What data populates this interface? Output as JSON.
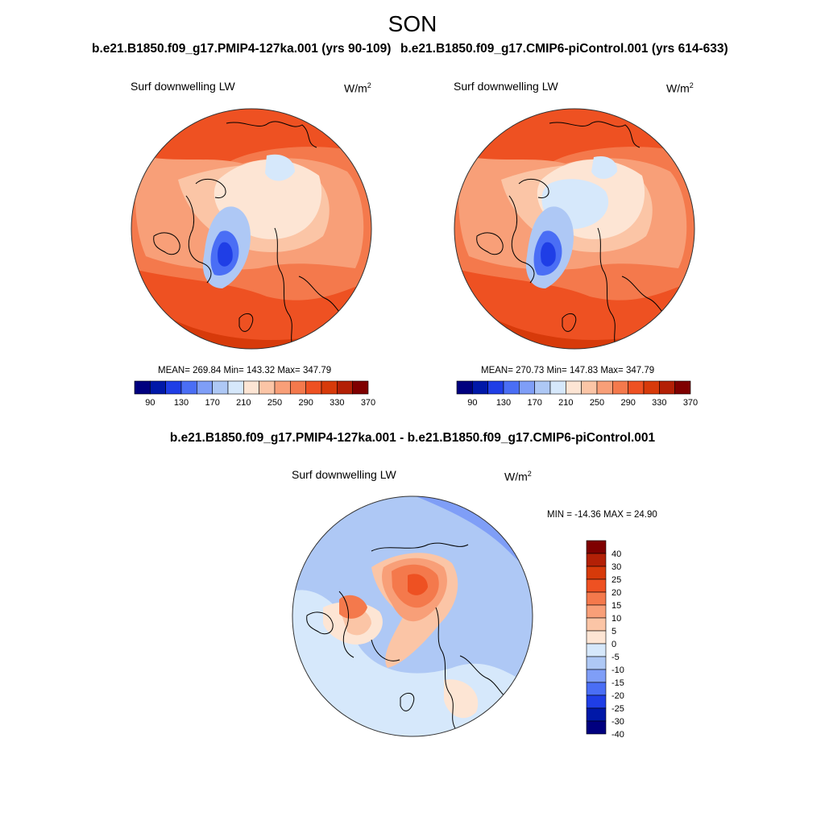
{
  "season": "SON",
  "panel_left": {
    "run_title": "b.e21.B1850.f09_g17.PMIP4-127ka.001 (yrs 90-109)",
    "variable": "Surf downwelling LW",
    "units": "W/m",
    "units_sup": "2",
    "stats": "MEAN= 269.84  Min= 143.32  Max= 347.79"
  },
  "panel_right": {
    "run_title": "b.e21.B1850.f09_g17.CMIP6-piControl.001 (yrs 614-633)",
    "variable": "Surf downwelling LW",
    "units": "W/m",
    "units_sup": "2",
    "stats": "MEAN= 270.73  Min= 147.83  Max= 347.79"
  },
  "abs_colorbar": {
    "colors": [
      "#00007f",
      "#0018a8",
      "#1f3ee6",
      "#4a6ef5",
      "#7f9ef7",
      "#aec8f5",
      "#d6e8fb",
      "#fde5d4",
      "#fbc5a6",
      "#f89f78",
      "#f4794c",
      "#ee5122",
      "#d73a0a",
      "#b32006",
      "#7f0000"
    ],
    "labels": [
      "90",
      "130",
      "170",
      "210",
      "250",
      "290",
      "330",
      "370"
    ]
  },
  "panel_diff": {
    "title": "b.e21.B1850.f09_g17.PMIP4-127ka.001 - b.e21.B1850.f09_g17.CMIP6-piControl.001",
    "variable": "Surf downwelling LW",
    "units": "W/m",
    "units_sup": "2",
    "stats": "MIN = -14.36 MAX =  24.90"
  },
  "diff_colorbar": {
    "colors": [
      "#7f0000",
      "#b32006",
      "#d73a0a",
      "#ee5122",
      "#f4794c",
      "#f89f78",
      "#fbc5a6",
      "#fde5d4",
      "#d6e8fb",
      "#aec8f5",
      "#7f9ef7",
      "#4a6ef5",
      "#1f3ee6",
      "#0018a8",
      "#00007f"
    ],
    "labels": [
      "40",
      "30",
      "25",
      "20",
      "15",
      "10",
      "5",
      "0",
      "-5",
      "-10",
      "-15",
      "-20",
      "-25",
      "-30",
      "-40"
    ]
  }
}
